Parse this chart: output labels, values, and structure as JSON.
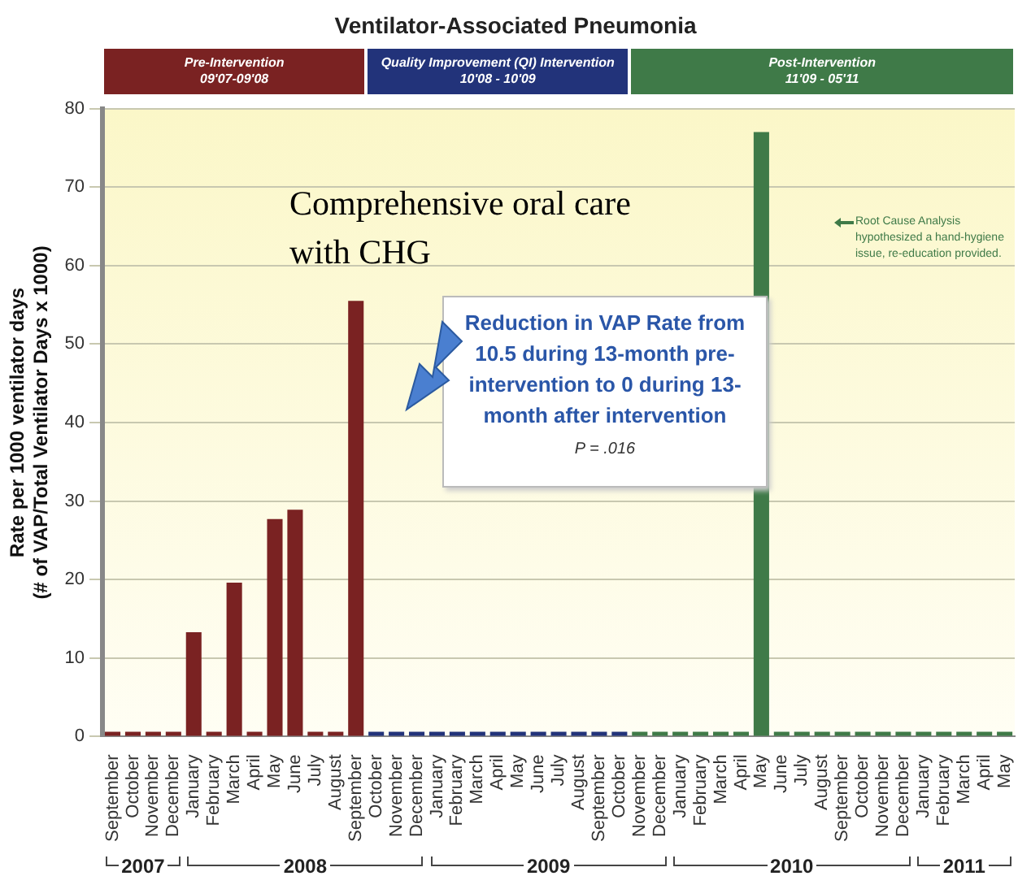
{
  "chart_data": {
    "type": "bar",
    "title": "Ventilator-Associated Pneumonia",
    "ylabel": "Rate per 1000 ventilator days\n(# of VAP/Total Ventilator Days x 1000)",
    "categories": [
      "September",
      "October",
      "November",
      "December",
      "January",
      "February",
      "March",
      "April",
      "May",
      "June",
      "July",
      "August",
      "September",
      "October",
      "November",
      "December",
      "January",
      "February",
      "March",
      "April",
      "May",
      "June",
      "July",
      "August",
      "September",
      "October",
      "November",
      "December",
      "January",
      "February",
      "March",
      "April",
      "May",
      "June",
      "July",
      "August",
      "September",
      "October",
      "November",
      "December",
      "January",
      "February",
      "March",
      "April",
      "May"
    ],
    "values": [
      0,
      0,
      0,
      0,
      13.3,
      0,
      19.6,
      0,
      27.7,
      28.9,
      0,
      0,
      55.5,
      0,
      0,
      0,
      0,
      0,
      0,
      0,
      0,
      0,
      0,
      0,
      0,
      0,
      0,
      0,
      0,
      0,
      0,
      0,
      77,
      0,
      0,
      0,
      0,
      0,
      0,
      0,
      0,
      0,
      0,
      0,
      0
    ],
    "colors": [
      "#7a2222",
      "#7a2222",
      "#7a2222",
      "#7a2222",
      "#7a2222",
      "#7a2222",
      "#7a2222",
      "#7a2222",
      "#7a2222",
      "#7a2222",
      "#7a2222",
      "#7a2222",
      "#7a2222",
      "#22337a",
      "#22337a",
      "#22337a",
      "#22337a",
      "#22337a",
      "#22337a",
      "#22337a",
      "#22337a",
      "#22337a",
      "#22337a",
      "#22337a",
      "#22337a",
      "#22337a",
      "#3f7a48",
      "#3f7a48",
      "#3f7a48",
      "#3f7a48",
      "#3f7a48",
      "#3f7a48",
      "#3f7a48",
      "#3f7a48",
      "#3f7a48",
      "#3f7a48",
      "#3f7a48",
      "#3f7a48",
      "#3f7a48",
      "#3f7a48",
      "#3f7a48",
      "#3f7a48",
      "#3f7a48",
      "#3f7a48",
      "#3f7a48"
    ],
    "ylim": [
      0,
      80
    ],
    "yticks": [
      0,
      10,
      20,
      30,
      40,
      50,
      60,
      70,
      80
    ],
    "grid": "y",
    "legend": false,
    "annotations": [
      "Comprehensive oral care with CHG",
      "Reduction in VAP Rate from 10.5 during 13-month pre-intervention to 0 during 13-month after intervention",
      "P = .016",
      "Root Cause Analysis hypothesized a hand-hygiene issue, re-education provided.",
      "Pre-Intervention\n09'07-09'08",
      "Quality Improvement (QI) Intervention\n10'08 - 10'09",
      "Post-Intervention\n11'09 - 05'11",
      "2007",
      "2008",
      "2009",
      "2010",
      "2011"
    ]
  }
}
